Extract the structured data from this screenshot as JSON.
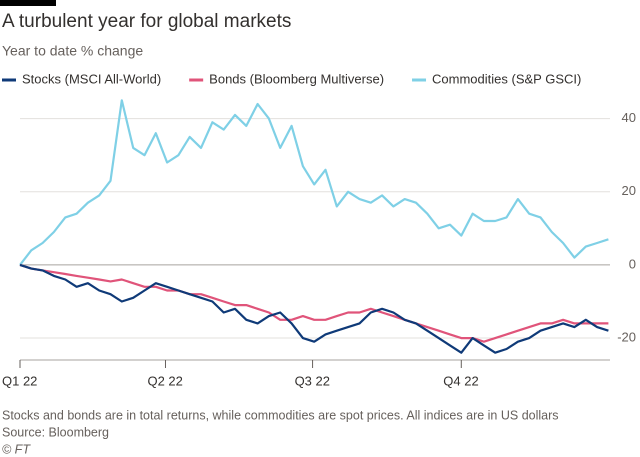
{
  "chart_data": {
    "type": "line",
    "title": "A turbulent year for global markets",
    "subtitle": "Year to date % change",
    "x": [
      0,
      7,
      14,
      21,
      28,
      35,
      42,
      49,
      56,
      63,
      70,
      77,
      84,
      91,
      98,
      105,
      112,
      119,
      126,
      133,
      140,
      147,
      154,
      161,
      168,
      175,
      182,
      189,
      196,
      203,
      210,
      217,
      224,
      231,
      238,
      245,
      252,
      259,
      266,
      273,
      280,
      287,
      294,
      301,
      308,
      315,
      322,
      329,
      336,
      343,
      350,
      357,
      364
    ],
    "xlim": [
      0,
      365
    ],
    "xticks": [
      {
        "value": 0,
        "label": "Q1 22"
      },
      {
        "value": 90,
        "label": "Q2 22"
      },
      {
        "value": 181,
        "label": "Q3 22"
      },
      {
        "value": 273,
        "label": "Q4 22"
      }
    ],
    "ylim": [
      -26,
      47
    ],
    "yticks": [
      -20,
      0,
      20,
      40
    ],
    "y_axis_position": "right",
    "grid": true,
    "legend": "top",
    "series": [
      {
        "name": "Stocks (MSCI All-World)",
        "color": "#0f3a78",
        "values": [
          0,
          -1,
          -1.5,
          -3,
          -4,
          -6,
          -5,
          -7,
          -8,
          -10,
          -9,
          -7,
          -5,
          -6,
          -7,
          -8,
          -9,
          -10,
          -13,
          -12,
          -15,
          -16,
          -14,
          -13,
          -16,
          -20,
          -21,
          -19,
          -18,
          -17,
          -16,
          -13,
          -12,
          -13,
          -15,
          -16,
          -18,
          -20,
          -22,
          -24,
          -20,
          -22,
          -24,
          -23,
          -21,
          -20,
          -18,
          -17,
          -16,
          -17,
          -15,
          -17,
          -18
        ]
      },
      {
        "name": "Bonds (Bloomberg Multiverse)",
        "color": "#e0547a",
        "values": [
          0,
          -1,
          -1.5,
          -2,
          -2.5,
          -3,
          -3.5,
          -4,
          -4.5,
          -4,
          -5,
          -6,
          -6,
          -7,
          -7,
          -8,
          -8,
          -9,
          -10,
          -11,
          -11,
          -12,
          -13,
          -15,
          -15,
          -14,
          -15,
          -15,
          -14,
          -13,
          -13,
          -12,
          -13,
          -14,
          -15,
          -16,
          -17,
          -18,
          -19,
          -20,
          -20,
          -21,
          -20,
          -19,
          -18,
          -17,
          -16,
          -16,
          -15,
          -16,
          -16,
          -16,
          -16
        ]
      },
      {
        "name": "Commodities (S&P GSCI)",
        "color": "#7fd0e6",
        "values": [
          0,
          4,
          6,
          9,
          13,
          14,
          17,
          19,
          23,
          45,
          32,
          30,
          36,
          28,
          30,
          35,
          32,
          39,
          37,
          41,
          38,
          44,
          40,
          32,
          38,
          27,
          22,
          26,
          16,
          20,
          18,
          17,
          19,
          16,
          18,
          17,
          14,
          10,
          11,
          8,
          14,
          12,
          12,
          13,
          18,
          14,
          13,
          9,
          6,
          2,
          5,
          6,
          7
        ]
      }
    ],
    "note": "Stocks and bonds are in total returns, while commodities are spot prices. All indices are in US dollars",
    "source": "Source: Bloomberg",
    "credit": "© FT"
  }
}
